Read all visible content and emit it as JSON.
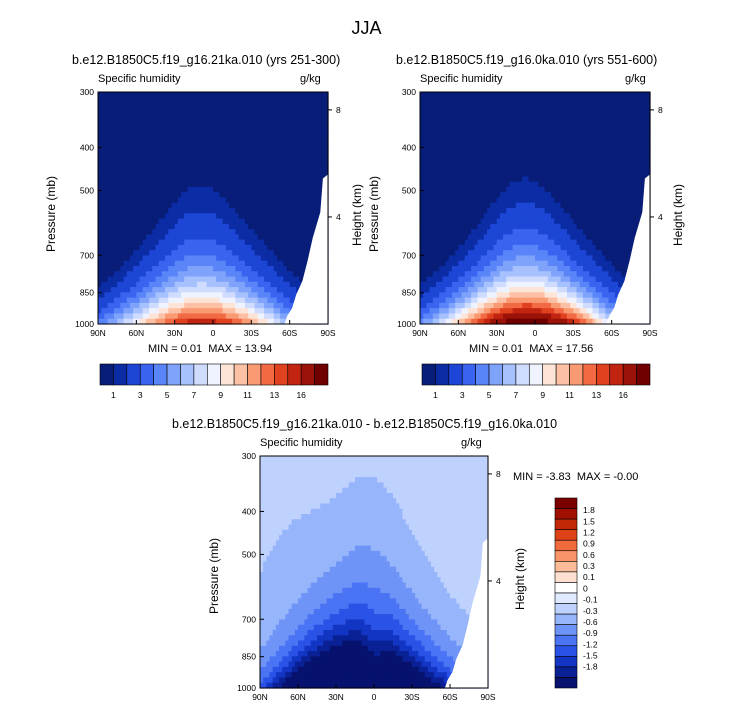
{
  "figure_title": "JJA",
  "colors": {
    "abs_levels": [
      "#081d78",
      "#0b2ca5",
      "#1d46d6",
      "#3a64f0",
      "#5a85f8",
      "#7fa3fb",
      "#a6c1fd",
      "#cfdcfe",
      "#eef3ff",
      "#fde4d6",
      "#fcc1a4",
      "#f99a73",
      "#f26a44",
      "#e0411f",
      "#c12410",
      "#9a1208",
      "#700000"
    ],
    "diff_levels": [
      "#06126d",
      "#0a2196",
      "#1235c3",
      "#2a52e6",
      "#4a74f4",
      "#6f94f8",
      "#97b5fb",
      "#bfd2fd",
      "#dfe9ff",
      "#ffffff",
      "#fde0cf",
      "#fbbc9a",
      "#f79468",
      "#ef6a3d",
      "#dd4219",
      "#c22808",
      "#a01000",
      "#7a0000"
    ]
  },
  "chart_data": [
    {
      "type": "heatmap",
      "title": "b.e12.B1850C5.f19_g16.21ka.010 (yrs 251-300)",
      "left_label": "Specific humidity",
      "right_label": "g/kg",
      "ylabel": "Pressure (mb)",
      "y2label": "Height (km)",
      "x_ticks": [
        "90N",
        "60N",
        "30N",
        "0",
        "30S",
        "60S",
        "90S"
      ],
      "y_ticks": [
        "300",
        "400",
        "500",
        "700",
        "850",
        "1000"
      ],
      "y_tick_values": [
        300,
        400,
        500,
        700,
        850,
        1000
      ],
      "y2_ticks": [
        "8",
        "4"
      ],
      "y2_tick_values": [
        8,
        4
      ],
      "min_label": "MIN =",
      "min_value": "0.01",
      "max_label": "MAX =",
      "max_value": "13.94",
      "peak_value": 13.94,
      "peak_lat": 10,
      "colorbar_labels": [
        "1",
        "3",
        "5",
        "7",
        "9",
        "11",
        "13",
        "16"
      ],
      "colorbar_levels": [
        0.5,
        1,
        2,
        3,
        4,
        5,
        6,
        7,
        8,
        9,
        10,
        11,
        12,
        13,
        14,
        16
      ]
    },
    {
      "type": "heatmap",
      "title": "b.e12.B1850C5.f19_g16.0ka.010 (yrs 551-600)",
      "left_label": "Specific humidity",
      "right_label": "g/kg",
      "ylabel": "Pressure (mb)",
      "y2label": "Height (km)",
      "x_ticks": [
        "90N",
        "60N",
        "30N",
        "0",
        "30S",
        "60S",
        "90S"
      ],
      "y_ticks": [
        "300",
        "400",
        "500",
        "700",
        "850",
        "1000"
      ],
      "y_tick_values": [
        300,
        400,
        500,
        700,
        850,
        1000
      ],
      "y2_ticks": [
        "8",
        "4"
      ],
      "y2_tick_values": [
        8,
        4
      ],
      "min_label": "MIN =",
      "min_value": "0.01",
      "max_label": "MAX =",
      "max_value": "17.56",
      "peak_value": 17.56,
      "peak_lat": 8,
      "colorbar_labels": [
        "1",
        "3",
        "5",
        "7",
        "9",
        "11",
        "13",
        "16"
      ],
      "colorbar_levels": [
        0.5,
        1,
        2,
        3,
        4,
        5,
        6,
        7,
        8,
        9,
        10,
        11,
        12,
        13,
        14,
        16
      ]
    },
    {
      "type": "heatmap",
      "title": "b.e12.B1850C5.f19_g16.21ka.010 - b.e12.B1850C5.f19_g16.0ka.010",
      "left_label": "Specific humidity",
      "right_label": "g/kg",
      "ylabel": "Pressure (mb)",
      "y2label": "Height (km)",
      "x_ticks": [
        "90N",
        "60N",
        "30N",
        "0",
        "30S",
        "60S",
        "90S"
      ],
      "y_ticks": [
        "300",
        "400",
        "500",
        "700",
        "850",
        "1000"
      ],
      "y_tick_values": [
        300,
        400,
        500,
        700,
        850,
        1000
      ],
      "y2_ticks": [
        "8",
        "4"
      ],
      "y2_tick_values": [
        8,
        4
      ],
      "min_label": "MIN =",
      "min_value": "-3.83",
      "max_label": "MAX =",
      "max_value": "-0.00",
      "colorbar_labels": [
        "1.8",
        "1.5",
        "1.2",
        "0.9",
        "0.6",
        "0.3",
        "0.1",
        "0",
        "-0.1",
        "-0.3",
        "-0.6",
        "-0.9",
        "-1.2",
        "-1.5",
        "-1.8"
      ],
      "colorbar_levels": [
        -1.8,
        -1.5,
        -1.2,
        -0.9,
        -0.6,
        -0.3,
        -0.1,
        0,
        0.1,
        0.3,
        0.6,
        0.9,
        1.2,
        1.5,
        1.8
      ]
    }
  ]
}
